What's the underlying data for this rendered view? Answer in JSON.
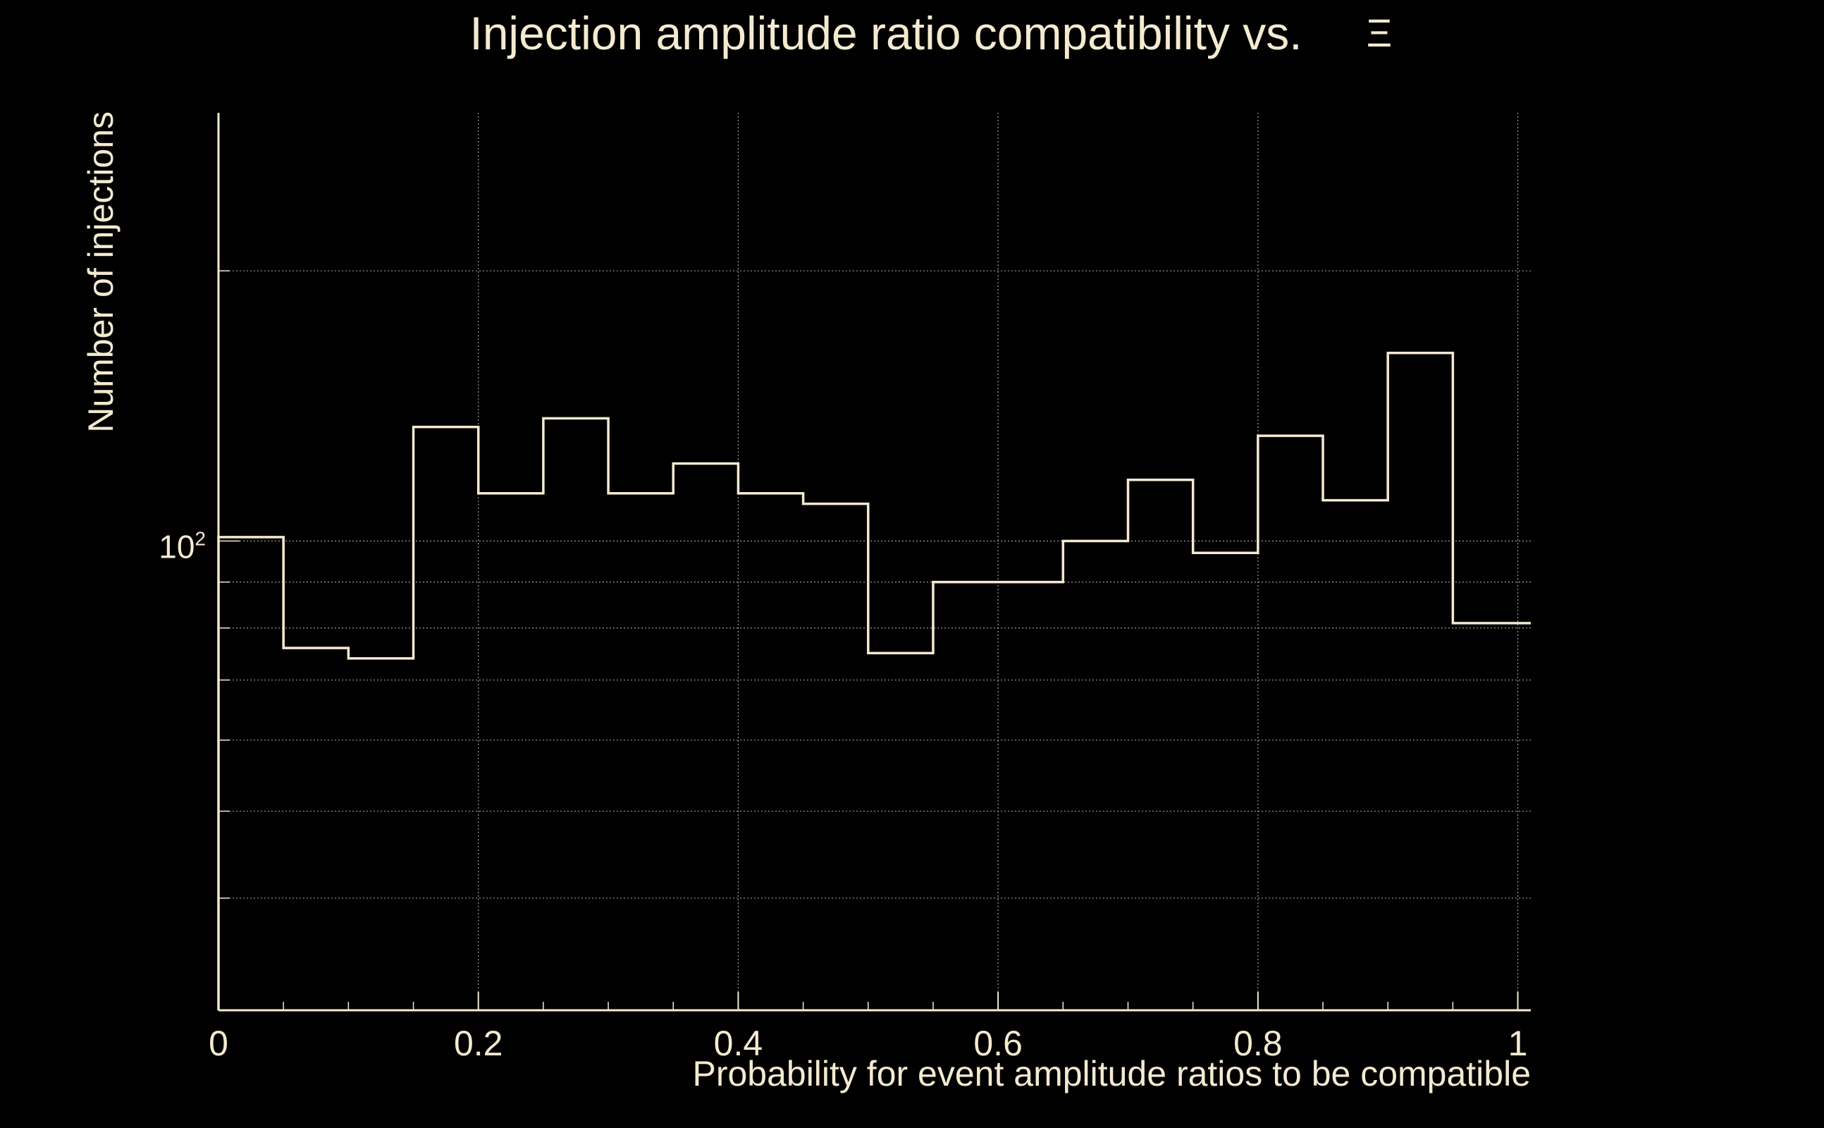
{
  "chart_data": {
    "type": "histogram",
    "title": "Injection amplitude ratio compatibility vs.",
    "title_symbol": "Ξ",
    "xlabel": "Probability for event amplitude ratios to be compatible",
    "ylabel": "Number of injections",
    "x_tick_labels": [
      "0",
      "0.2",
      "0.4",
      "0.6",
      "0.8",
      "1"
    ],
    "x_ticks": [
      0,
      0.2,
      0.4,
      0.6,
      0.8,
      1.0
    ],
    "y_tick_label_base": "10",
    "y_tick_label_exp": "2",
    "y_scale": "log",
    "xlim": [
      0,
      1.01
    ],
    "ylim": [
      30,
      300
    ],
    "bin_width": 0.05,
    "bin_edges": [
      0,
      0.05,
      0.1,
      0.15,
      0.2,
      0.25,
      0.3,
      0.35,
      0.4,
      0.45,
      0.5,
      0.55,
      0.6,
      0.65,
      0.7,
      0.75,
      0.8,
      0.85,
      0.9,
      0.95,
      1.0
    ],
    "values": [
      101,
      76,
      74,
      134,
      113,
      137,
      113,
      122,
      113,
      110,
      75,
      90,
      90,
      100,
      117,
      97,
      131,
      111,
      162,
      81
    ],
    "overflow_value": 81,
    "grid": true,
    "legend": "none",
    "colors": {
      "background": "#000000",
      "foreground": "#f3ead0",
      "grid": "#9a9a9a"
    }
  }
}
